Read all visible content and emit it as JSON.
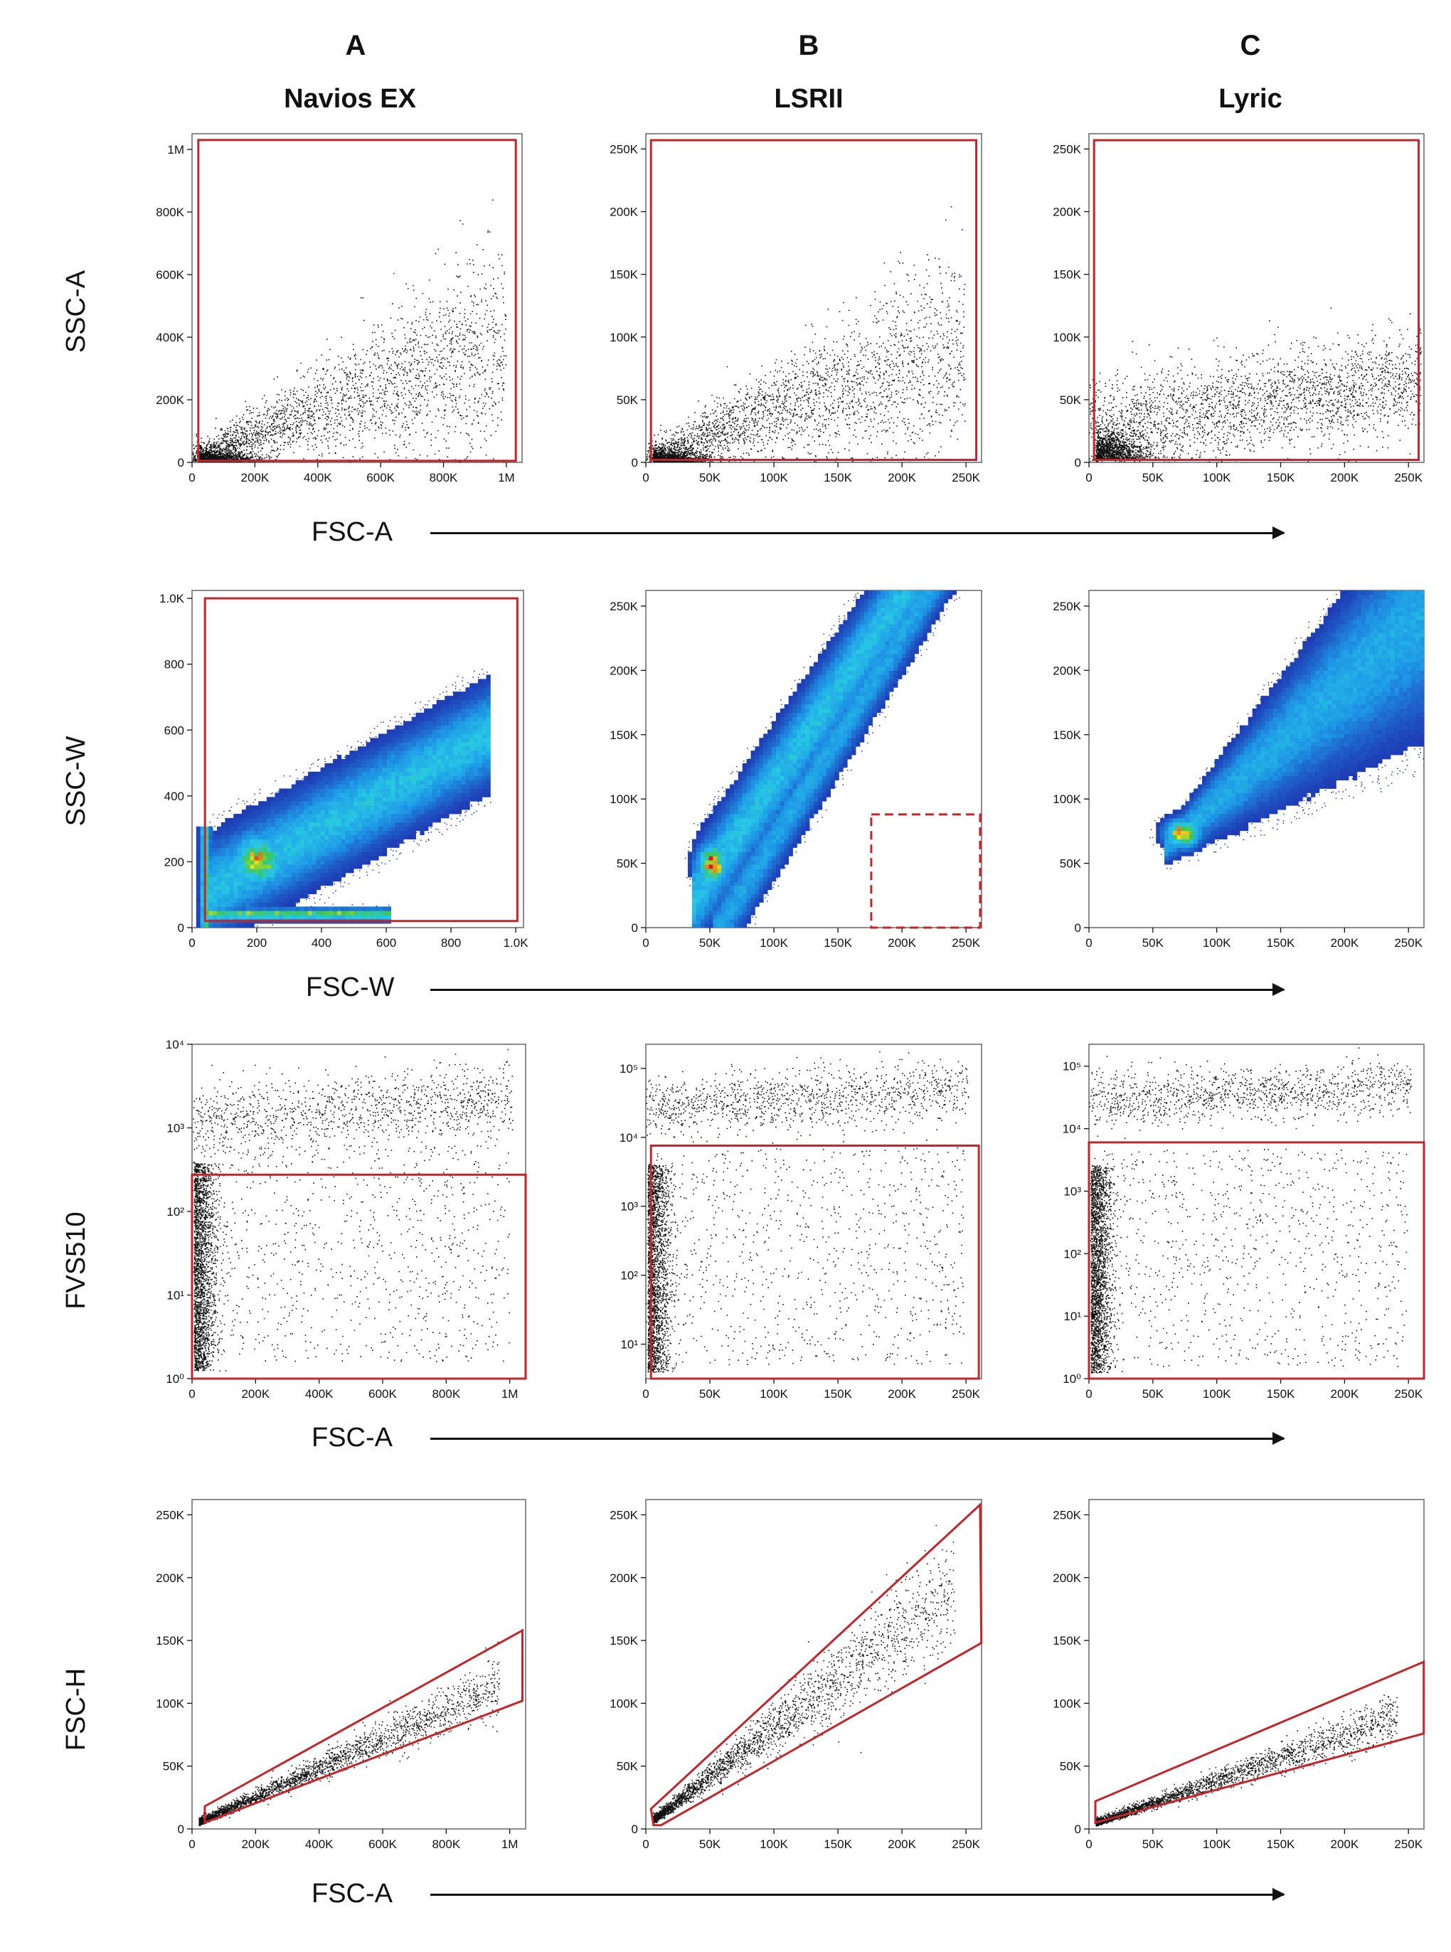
{
  "columns": [
    {
      "letter": "A",
      "instrument": "Navios EX"
    },
    {
      "letter": "B",
      "instrument": "LSRII"
    },
    {
      "letter": "C",
      "instrument": "Lyric"
    }
  ],
  "rows": [
    {
      "ylabel": "SSC-A",
      "xlabel": "FSC-A"
    },
    {
      "ylabel": "SSC-W",
      "xlabel": "FSC-W"
    },
    {
      "ylabel": "FVS510",
      "xlabel": "FSC-A"
    },
    {
      "ylabel": "FSC-H",
      "xlabel": "FSC-A"
    }
  ],
  "colors": {
    "gate": "#c0272d",
    "dots": "#111111",
    "density_low": "#1a2fa8",
    "density_mid": "#21a9e0",
    "density_high": "#e8e81c",
    "density_peak": "#d62020"
  },
  "chart_data": [
    {
      "type": "scatter",
      "panel": "A1",
      "xlabel": "FSC-A",
      "ylabel": "SSC-A",
      "xlim": [
        0,
        1050000
      ],
      "ylim": [
        0,
        1050000
      ],
      "xticks": [
        0,
        200000,
        400000,
        600000,
        800000,
        1000000
      ],
      "xtick_labels": [
        "0",
        "200K",
        "400K",
        "600K",
        "800K",
        "1M"
      ],
      "yticks": [
        0,
        200000,
        400000,
        600000,
        800000,
        1000000
      ],
      "ytick_labels": [
        "0",
        "200K",
        "400K",
        "600K",
        "800K",
        "1M"
      ],
      "gate": {
        "shape": "rectangle",
        "x": [
          20000,
          1030000
        ],
        "y": [
          5000,
          1030000
        ],
        "style": "solid"
      }
    },
    {
      "type": "scatter",
      "panel": "B1",
      "xlabel": "FSC-A",
      "ylabel": "SSC-A",
      "xlim": [
        0,
        262144
      ],
      "ylim": [
        0,
        262144
      ],
      "xticks": [
        0,
        50000,
        100000,
        150000,
        200000,
        250000
      ],
      "xtick_labels": [
        "0",
        "50K",
        "100K",
        "150K",
        "200K",
        "250K"
      ],
      "yticks": [
        0,
        50000,
        100000,
        150000,
        200000,
        250000
      ],
      "ytick_labels": [
        "0",
        "50K",
        "100K",
        "150K",
        "200K",
        "250K"
      ],
      "gate": {
        "shape": "rectangle",
        "x": [
          4000,
          258000
        ],
        "y": [
          2000,
          257000
        ],
        "style": "solid"
      }
    },
    {
      "type": "scatter",
      "panel": "C1",
      "xlabel": "FSC-A",
      "ylabel": "SSC-A",
      "xlim": [
        0,
        262144
      ],
      "ylim": [
        0,
        262144
      ],
      "xticks": [
        0,
        50000,
        100000,
        150000,
        200000,
        250000
      ],
      "xtick_labels": [
        "0",
        "50K",
        "100K",
        "150K",
        "200K",
        "250K"
      ],
      "yticks": [
        0,
        50000,
        100000,
        150000,
        200000,
        250000
      ],
      "ytick_labels": [
        "0",
        "50K",
        "100K",
        "150K",
        "200K",
        "250K"
      ],
      "gate": {
        "shape": "rectangle",
        "x": [
          4000,
          258000
        ],
        "y": [
          2000,
          257000
        ],
        "style": "solid"
      }
    },
    {
      "type": "heatmap",
      "panel": "A2",
      "xlabel": "FSC-W",
      "ylabel": "SSC-W",
      "xlim": [
        0,
        1024
      ],
      "ylim": [
        0,
        1024
      ],
      "xticks": [
        0,
        200,
        400,
        600,
        800,
        1000
      ],
      "xtick_labels": [
        "0",
        "200",
        "400",
        "600",
        "800",
        "1.0K"
      ],
      "yticks": [
        0,
        200,
        400,
        600,
        800,
        1000
      ],
      "ytick_labels": [
        "0",
        "200",
        "400",
        "600",
        "800",
        "1.0K"
      ],
      "gate": {
        "shape": "rectangle",
        "x": [
          40,
          1005
        ],
        "y": [
          20,
          1000
        ],
        "style": "solid"
      }
    },
    {
      "type": "heatmap",
      "panel": "B2",
      "xlabel": "FSC-W",
      "ylabel": "SSC-W",
      "xlim": [
        0,
        262144
      ],
      "ylim": [
        0,
        262144
      ],
      "xticks": [
        0,
        50000,
        100000,
        150000,
        200000,
        250000
      ],
      "xtick_labels": [
        "0",
        "50K",
        "100K",
        "150K",
        "200K",
        "250K"
      ],
      "yticks": [
        0,
        50000,
        100000,
        150000,
        200000,
        250000
      ],
      "ytick_labels": [
        "0",
        "50K",
        "100K",
        "150K",
        "200K",
        "250K"
      ],
      "gate": {
        "shape": "rectangle",
        "x": [
          176000,
          261000
        ],
        "y": [
          0,
          88000
        ],
        "style": "dashed"
      }
    },
    {
      "type": "heatmap",
      "panel": "C2",
      "xlabel": "FSC-W",
      "ylabel": "SSC-W",
      "xlim": [
        0,
        262144
      ],
      "ylim": [
        0,
        262144
      ],
      "xticks": [
        0,
        50000,
        100000,
        150000,
        200000,
        250000
      ],
      "xtick_labels": [
        "0",
        "50K",
        "100K",
        "150K",
        "200K",
        "250K"
      ],
      "yticks": [
        0,
        50000,
        100000,
        150000,
        200000,
        250000
      ],
      "ytick_labels": [
        "0",
        "50K",
        "100K",
        "150K",
        "200K",
        "250K"
      ],
      "gate": null
    },
    {
      "type": "scatter",
      "panel": "A3",
      "xlabel": "FSC-A",
      "ylabel": "FVS510",
      "xlim": [
        0,
        1050000
      ],
      "ylim_log10": [
        0,
        4
      ],
      "xticks": [
        0,
        200000,
        400000,
        600000,
        800000,
        1000000
      ],
      "xtick_labels": [
        "0",
        "200K",
        "400K",
        "600K",
        "800K",
        "1M"
      ],
      "yticks_log10": [
        0,
        1,
        2,
        3,
        4
      ],
      "ytick_labels": [
        "10⁰",
        "10¹",
        "10²",
        "10³",
        "10⁴"
      ],
      "gate": {
        "shape": "rectangle",
        "x": [
          0,
          1050000
        ],
        "y_log10": [
          0,
          2.44
        ],
        "style": "solid"
      }
    },
    {
      "type": "scatter",
      "panel": "B3",
      "xlabel": "FSC-A",
      "ylabel": "FVS510",
      "xlim": [
        0,
        262144
      ],
      "ylim_log10": [
        0.5,
        5.35
      ],
      "xticks": [
        0,
        50000,
        100000,
        150000,
        200000,
        250000
      ],
      "xtick_labels": [
        "0",
        "50K",
        "100K",
        "150K",
        "200K",
        "250K"
      ],
      "yticks_log10": [
        1,
        2,
        3,
        4,
        5
      ],
      "ytick_labels": [
        "10¹",
        "10²",
        "10³",
        "10⁴",
        "10⁵"
      ],
      "gate": {
        "shape": "rectangle",
        "x": [
          4000,
          260000
        ],
        "y_log10": [
          0.5,
          3.88
        ],
        "style": "solid"
      }
    },
    {
      "type": "scatter",
      "panel": "C3",
      "xlabel": "FSC-A",
      "ylabel": "FVS510",
      "xlim": [
        0,
        262144
      ],
      "ylim_log10": [
        0,
        5.35
      ],
      "xticks": [
        0,
        50000,
        100000,
        150000,
        200000,
        250000
      ],
      "xtick_labels": [
        "0",
        "50K",
        "100K",
        "150K",
        "200K",
        "250K"
      ],
      "yticks_log10": [
        0,
        1,
        2,
        3,
        4,
        5
      ],
      "ytick_labels": [
        "10⁰",
        "10¹",
        "10²",
        "10³",
        "10⁴",
        "10⁵"
      ],
      "gate": {
        "shape": "rectangle",
        "x": [
          0,
          262144
        ],
        "y_log10": [
          -0.1,
          3.78
        ],
        "style": "solid"
      }
    },
    {
      "type": "scatter",
      "panel": "A4",
      "xlabel": "FSC-A",
      "ylabel": "FSC-H",
      "xlim": [
        0,
        1050000
      ],
      "ylim": [
        0,
        262144
      ],
      "xticks": [
        0,
        200000,
        400000,
        600000,
        800000,
        1000000
      ],
      "xtick_labels": [
        "0",
        "200K",
        "400K",
        "600K",
        "800K",
        "1M"
      ],
      "yticks": [
        0,
        50000,
        100000,
        150000,
        200000,
        250000
      ],
      "ytick_labels": [
        "0",
        "50K",
        "100K",
        "150K",
        "200K",
        "250K"
      ],
      "gate": {
        "shape": "polygon",
        "points": [
          [
            40000,
            5000
          ],
          [
            1040000,
            102000
          ],
          [
            1040000,
            158000
          ],
          [
            40000,
            18000
          ]
        ],
        "style": "solid"
      }
    },
    {
      "type": "scatter",
      "panel": "B4",
      "xlabel": "FSC-A",
      "ylabel": "FSC-H",
      "xlim": [
        0,
        262144
      ],
      "ylim": [
        0,
        262144
      ],
      "xticks": [
        0,
        50000,
        100000,
        150000,
        200000,
        250000
      ],
      "xtick_labels": [
        "0",
        "50K",
        "100K",
        "150K",
        "200K",
        "250K"
      ],
      "yticks": [
        0,
        50000,
        100000,
        150000,
        200000,
        250000
      ],
      "ytick_labels": [
        "0",
        "50K",
        "100K",
        "150K",
        "200K",
        "250K"
      ],
      "gate": {
        "shape": "polygon",
        "points": [
          [
            6000,
            3000
          ],
          [
            12000,
            3000
          ],
          [
            262000,
            148000
          ],
          [
            261000,
            258000
          ],
          [
            4000,
            16000
          ]
        ],
        "style": "solid"
      }
    },
    {
      "type": "scatter",
      "panel": "C4",
      "xlabel": "FSC-A",
      "ylabel": "FSC-H",
      "xlim": [
        0,
        262144
      ],
      "ylim": [
        0,
        262144
      ],
      "xticks": [
        0,
        50000,
        100000,
        150000,
        200000,
        250000
      ],
      "xtick_labels": [
        "0",
        "50K",
        "100K",
        "150K",
        "200K",
        "250K"
      ],
      "yticks": [
        0,
        50000,
        100000,
        150000,
        200000,
        250000
      ],
      "ytick_labels": [
        "0",
        "50K",
        "100K",
        "150K",
        "200K",
        "250K"
      ],
      "gate": {
        "shape": "polygon",
        "points": [
          [
            5000,
            5000
          ],
          [
            262000,
            76000
          ],
          [
            262000,
            133000
          ],
          [
            5000,
            22000
          ]
        ],
        "style": "solid"
      }
    }
  ]
}
